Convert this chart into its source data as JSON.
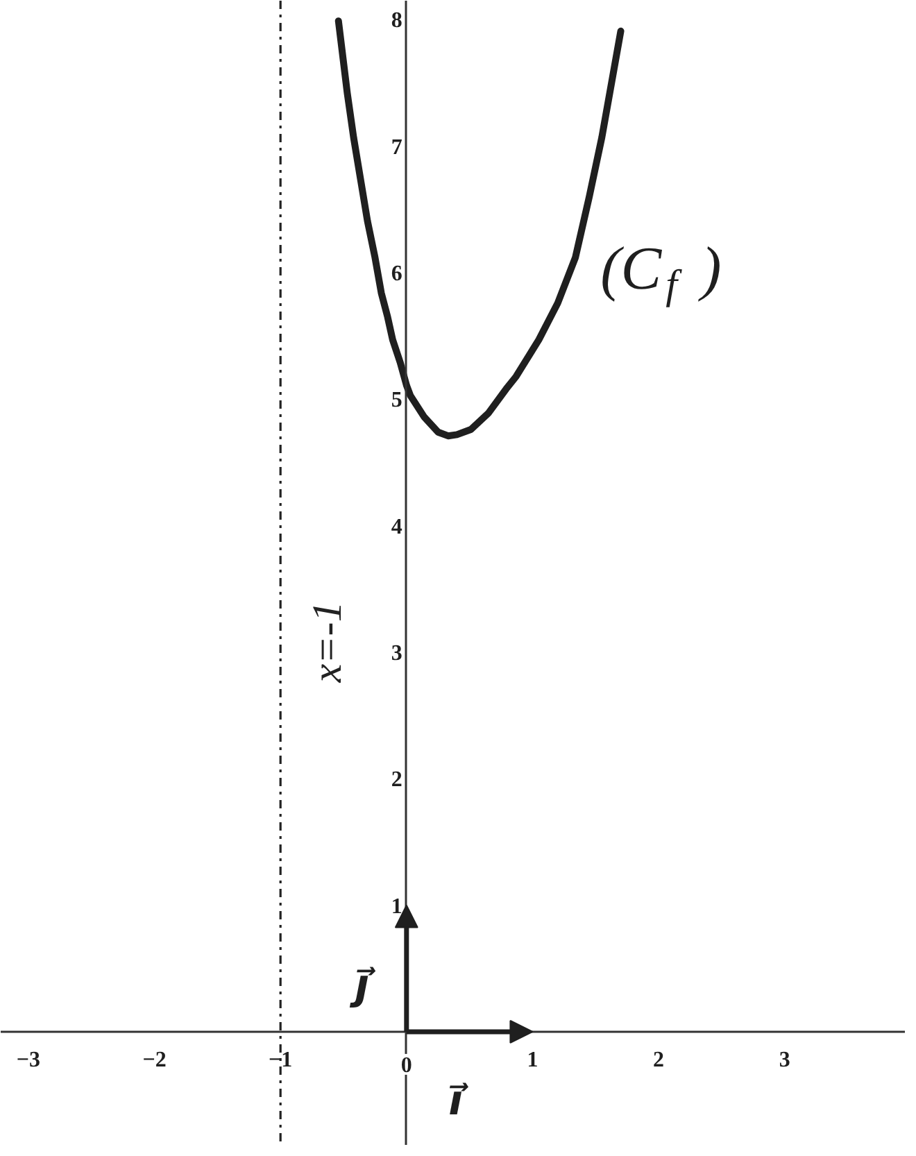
{
  "chart_data": {
    "type": "line",
    "x": [
      -0.54,
      -0.47,
      -0.42,
      -0.36,
      -0.31,
      -0.25,
      -0.2,
      -0.15,
      -0.11,
      -0.05,
      0,
      0.03,
      0.14,
      0.25,
      0.33,
      0.4,
      0.51,
      0.65,
      0.79,
      0.87,
      1.05,
      1.2,
      1.34,
      1.45,
      1.55,
      1.7
    ],
    "series": [
      {
        "name": "(C$_{f}$)",
        "color": "#1f1f1f",
        "values": [
          7.99,
          7.42,
          7.07,
          6.71,
          6.41,
          6.12,
          5.84,
          5.65,
          5.47,
          5.29,
          5.11,
          5.03,
          4.86,
          4.74,
          4.71,
          4.72,
          4.76,
          4.89,
          5.08,
          5.18,
          5.47,
          5.76,
          6.12,
          6.6,
          7.07,
          7.91
        ]
      }
    ],
    "xlim": [
      -3.22,
      3.96
    ],
    "ylim": [
      -0.9,
      8.15
    ],
    "xticks": [
      -3,
      -2,
      -1,
      0,
      1,
      2,
      3
    ],
    "yticks": [
      1,
      2,
      3,
      4,
      5,
      6,
      7,
      8
    ],
    "ref_lines": [
      {
        "axis": "x",
        "value": -1,
        "label": "x=-1",
        "line_style": "dashdot",
        "color": "#222222"
      }
    ],
    "annotations": [
      "i⃗",
      "j⃗"
    ]
  }
}
